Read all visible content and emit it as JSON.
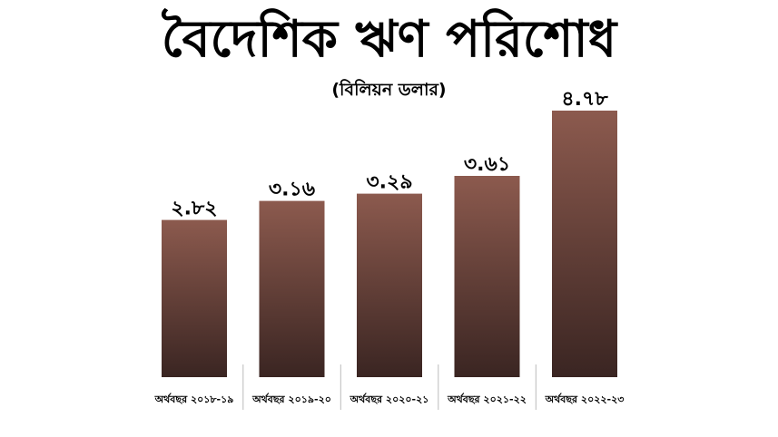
{
  "chart_data": {
    "type": "bar",
    "title": "বৈদেশিক ঋণ পরিশোধ",
    "subtitle": "(বিলিয়ন ডলার)",
    "categories": [
      "অর্থবছর ২০১৮-১৯",
      "অর্থবছর ২০১৯-২০",
      "অর্থবছর ২০২০-২১",
      "অর্থবছর ২০২১-২২",
      "অর্থবছর ২০২২-২৩"
    ],
    "values": [
      2.82,
      3.16,
      3.29,
      3.61,
      4.78
    ],
    "value_labels": [
      "২.৮২",
      "৩.১৬",
      "৩.২৯",
      "৩.৬১",
      "৪.৭৮"
    ],
    "ylim": [
      0,
      4.78
    ],
    "grid": false,
    "legend": "none",
    "colors": {
      "bar_top": "#8c5a4e",
      "bar_bottom": "#3a2522",
      "text": "#000000",
      "separator": "#bbbbbb"
    }
  }
}
